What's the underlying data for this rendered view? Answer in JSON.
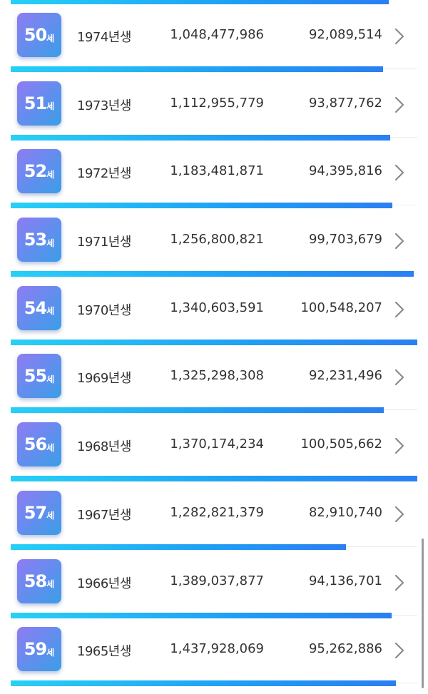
{
  "rows": [
    {
      "age": "50",
      "unit": "세",
      "birth": "1974년생",
      "total": "1,048,477,986",
      "per": "92,089,514",
      "bar_fraction": 0.915
    },
    {
      "age": "51",
      "unit": "세",
      "birth": "1973년생",
      "total": "1,112,955,779",
      "per": "93,877,762",
      "bar_fraction": 0.933
    },
    {
      "age": "52",
      "unit": "세",
      "birth": "1972년생",
      "total": "1,183,481,871",
      "per": "94,395,816",
      "bar_fraction": 0.938
    },
    {
      "age": "53",
      "unit": "세",
      "birth": "1971년생",
      "total": "1,256,800,821",
      "per": "99,703,679",
      "bar_fraction": 0.991
    },
    {
      "age": "54",
      "unit": "세",
      "birth": "1970년생",
      "total": "1,340,603,591",
      "per": "100,548,207",
      "bar_fraction": 1.0
    },
    {
      "age": "55",
      "unit": "세",
      "birth": "1969년생",
      "total": "1,325,298,308",
      "per": "92,231,496",
      "bar_fraction": 0.917
    },
    {
      "age": "56",
      "unit": "세",
      "birth": "1968년생",
      "total": "1,370,174,234",
      "per": "100,505,662",
      "bar_fraction": 1.0
    },
    {
      "age": "57",
      "unit": "세",
      "birth": "1967년생",
      "total": "1,282,821,379",
      "per": "82,910,740",
      "bar_fraction": 0.824
    },
    {
      "age": "58",
      "unit": "세",
      "birth": "1966년생",
      "total": "1,389,037,877",
      "per": "94,136,701",
      "bar_fraction": 0.936
    },
    {
      "age": "59",
      "unit": "세",
      "birth": "1965년생",
      "total": "1,437,928,069",
      "per": "95,262,886",
      "bar_fraction": 0.947
    }
  ],
  "top_bar_fraction": 0.93,
  "colors": {
    "bar_start": "#27d0f6",
    "bar_end": "#2a7ff2",
    "badge_start": "#8f7cf2",
    "badge_end": "#3a9ee6",
    "text": "#333333",
    "chevron": "#8a8a8a"
  },
  "icons": {
    "row_arrow": "chevron-right-icon"
  }
}
